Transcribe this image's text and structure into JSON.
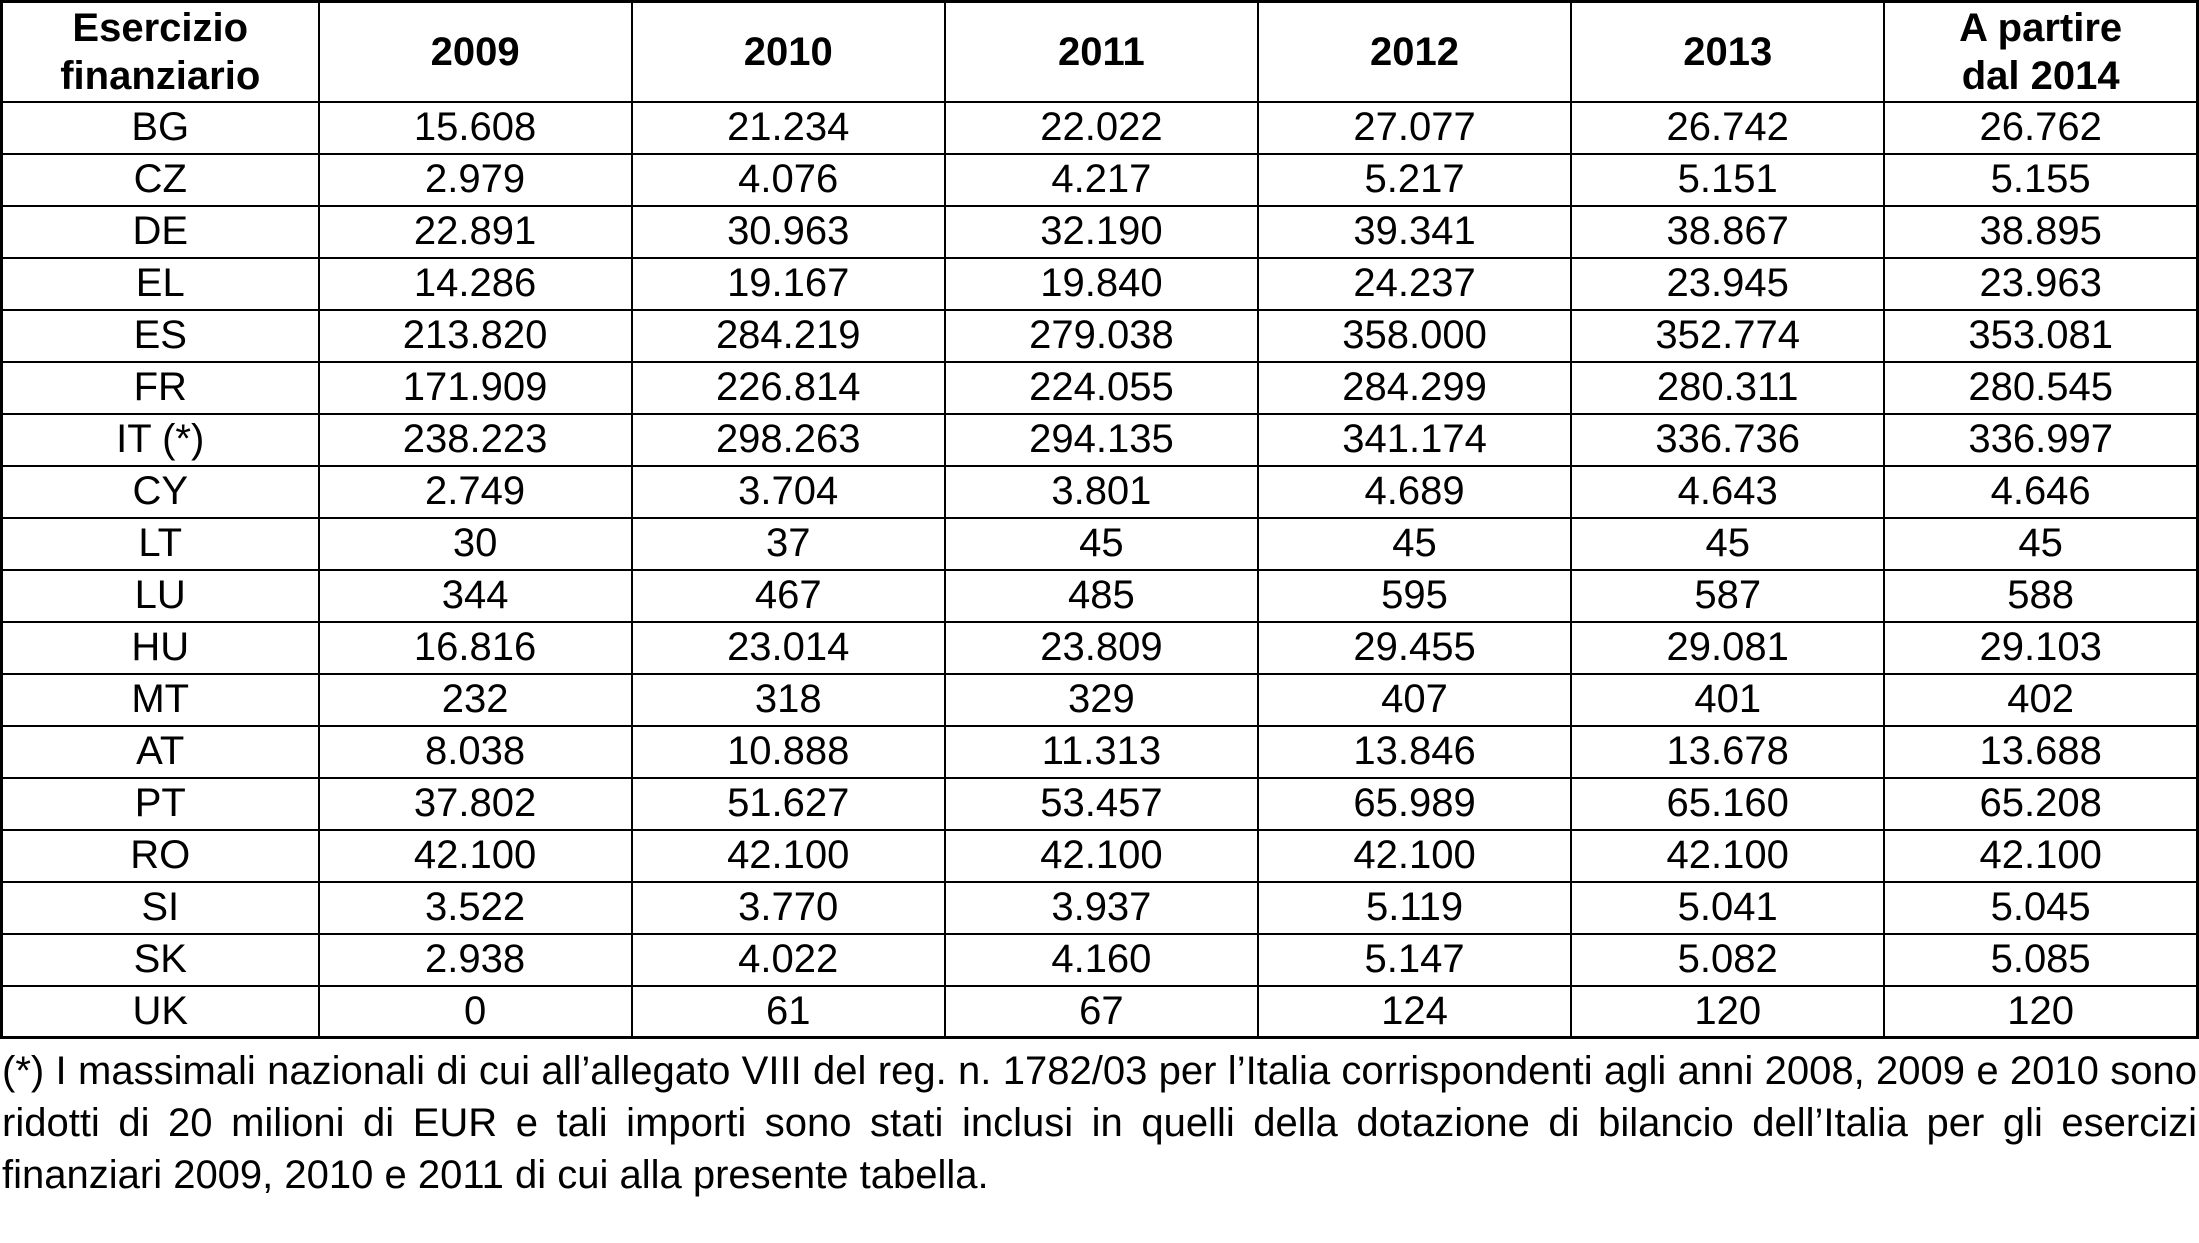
{
  "table": {
    "header": {
      "first": "Esercizio finanziario",
      "cols": [
        "2009",
        "2010",
        "2011",
        "2012",
        "2013"
      ],
      "last": {
        "line1": "A partire",
        "line2": "dal 2014"
      }
    },
    "rows": [
      {
        "label": "BG",
        "values": [
          "15.608",
          "21.234",
          "22.022",
          "27.077",
          "26.742",
          "26.762"
        ]
      },
      {
        "label": "CZ",
        "values": [
          "2.979",
          "4.076",
          "4.217",
          "5.217",
          "5.151",
          "5.155"
        ]
      },
      {
        "label": "DE",
        "values": [
          "22.891",
          "30.963",
          "32.190",
          "39.341",
          "38.867",
          "38.895"
        ]
      },
      {
        "label": "EL",
        "values": [
          "14.286",
          "19.167",
          "19.840",
          "24.237",
          "23.945",
          "23.963"
        ]
      },
      {
        "label": "ES",
        "values": [
          "213.820",
          "284.219",
          "279.038",
          "358.000",
          "352.774",
          "353.081"
        ]
      },
      {
        "label": "FR",
        "values": [
          "171.909",
          "226.814",
          "224.055",
          "284.299",
          "280.311",
          "280.545"
        ]
      },
      {
        "label": "IT (*)",
        "values": [
          "238.223",
          "298.263",
          "294.135",
          "341.174",
          "336.736",
          "336.997"
        ]
      },
      {
        "label": "CY",
        "values": [
          "2.749",
          "3.704",
          "3.801",
          "4.689",
          "4.643",
          "4.646"
        ]
      },
      {
        "label": "LT",
        "values": [
          "30",
          "37",
          "45",
          "45",
          "45",
          "45"
        ]
      },
      {
        "label": "LU",
        "values": [
          "344",
          "467",
          "485",
          "595",
          "587",
          "588"
        ]
      },
      {
        "label": "HU",
        "values": [
          "16.816",
          "23.014",
          "23.809",
          "29.455",
          "29.081",
          "29.103"
        ]
      },
      {
        "label": "MT",
        "values": [
          "232",
          "318",
          "329",
          "407",
          "401",
          "402"
        ]
      },
      {
        "label": "AT",
        "values": [
          "8.038",
          "10.888",
          "11.313",
          "13.846",
          "13.678",
          "13.688"
        ]
      },
      {
        "label": "PT",
        "values": [
          "37.802",
          "51.627",
          "53.457",
          "65.989",
          "65.160",
          "65.208"
        ]
      },
      {
        "label": "RO",
        "values": [
          "42.100",
          "42.100",
          "42.100",
          "42.100",
          "42.100",
          "42.100"
        ]
      },
      {
        "label": "SI",
        "values": [
          "3.522",
          "3.770",
          "3.937",
          "5.119",
          "5.041",
          "5.045"
        ]
      },
      {
        "label": "SK",
        "values": [
          "2.938",
          "4.022",
          "4.160",
          "5.147",
          "5.082",
          "5.085"
        ]
      },
      {
        "label": "UK",
        "values": [
          "0",
          "61",
          "67",
          "124",
          "120",
          "120"
        ]
      }
    ],
    "footnote": "(*) I massimali nazionali di cui all’allegato VIII del reg. n. 1782/03 per l’Italia corrispondenti agli anni 2008, 2009 e 2010 sono ridotti di 20 milioni di EUR e tali importi sono stati inclusi in quelli della dotazione di bilancio dell’Italia per gli esercizi finanziari 2009, 2010 e 2011 di cui alla presente tabella."
  }
}
